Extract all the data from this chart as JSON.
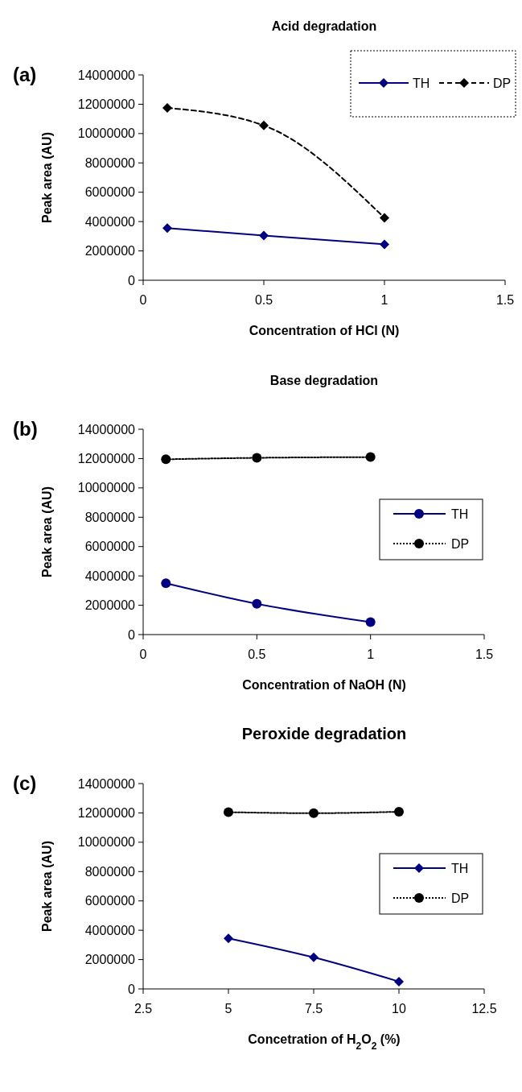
{
  "chart_data": [
    {
      "type": "line",
      "title": "Acid degradation",
      "xlabel": "Concentration of HCl (N)",
      "ylabel": "Peak area (AU)",
      "annotations": [
        "(a)"
      ],
      "xlim": [
        0,
        1.5
      ],
      "xticks": [
        0,
        0.5,
        1,
        1.5
      ],
      "ylim": [
        0,
        14000000
      ],
      "yticks": [
        0,
        2000000,
        4000000,
        6000000,
        8000000,
        10000000,
        12000000,
        14000000
      ],
      "grid": false,
      "legend": "top right",
      "x": [
        0.1,
        0.5,
        1
      ],
      "series": [
        {
          "name": "TH",
          "color": "#000080",
          "values": [
            3550000,
            3050000,
            2450000
          ],
          "marker": "diamond",
          "line_style": "solid"
        },
        {
          "name": "DP",
          "color": "#000000",
          "values": [
            11750000,
            10550000,
            4250000
          ],
          "marker": "diamond",
          "line_style": "dashed"
        }
      ]
    },
    {
      "type": "line",
      "title": "Base degradation",
      "xlabel": "Concentration of NaOH (N)",
      "ylabel": "Peak area (AU)",
      "annotations": [
        "(b)"
      ],
      "xlim": [
        0,
        1.5
      ],
      "xticks": [
        0,
        0.5,
        1,
        1.5
      ],
      "ylim": [
        0,
        14000000
      ],
      "yticks": [
        0,
        2000000,
        4000000,
        6000000,
        8000000,
        10000000,
        12000000,
        14000000
      ],
      "grid": false,
      "legend": "right",
      "x": [
        0.1,
        0.5,
        1
      ],
      "series": [
        {
          "name": "TH",
          "color": "#000080",
          "values": [
            3500000,
            2100000,
            850000
          ],
          "marker": "circle",
          "line_style": "solid"
        },
        {
          "name": "DP",
          "color": "#000000",
          "values": [
            11950000,
            12050000,
            12100000
          ],
          "marker": "circle",
          "line_style": "dotted"
        }
      ]
    },
    {
      "type": "line",
      "title": "Peroxide degradation",
      "xlabel": "Concetration of H$_{2}$O$_{2}$ (%)",
      "ylabel": "Peak area (AU)",
      "annotations": [
        "(c)"
      ],
      "xlim": [
        2.5,
        12.5
      ],
      "xticks": [
        2.5,
        5,
        7.5,
        10,
        12.5
      ],
      "ylim": [
        0,
        14000000
      ],
      "yticks": [
        0,
        2000000,
        4000000,
        6000000,
        8000000,
        10000000,
        12000000,
        14000000
      ],
      "grid": false,
      "legend": "right",
      "x": [
        5,
        7.5,
        10
      ],
      "series": [
        {
          "name": "TH",
          "color": "#000080",
          "values": [
            3450000,
            2150000,
            500000
          ],
          "marker": "diamond",
          "line_style": "solid"
        },
        {
          "name": "DP",
          "color": "#000000",
          "values": [
            12050000,
            11980000,
            12080000
          ],
          "marker": "circle",
          "line_style": "dotted"
        }
      ]
    }
  ]
}
